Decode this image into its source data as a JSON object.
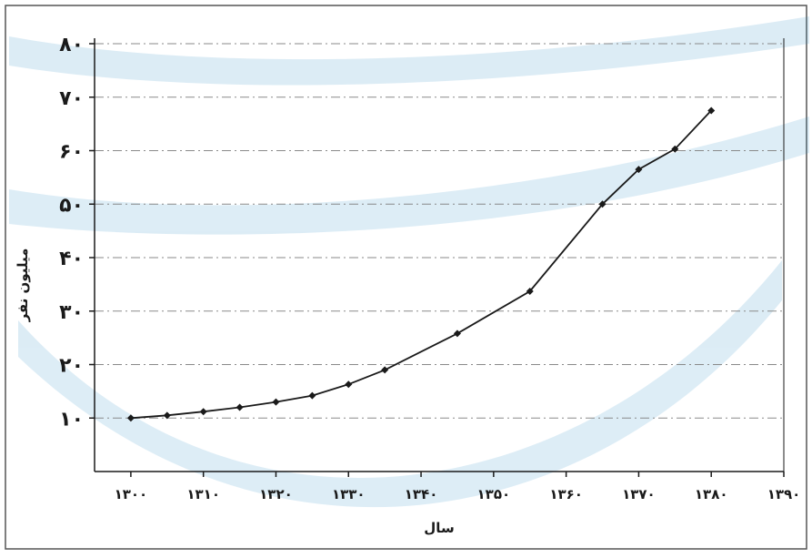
{
  "chart_data": {
    "type": "line",
    "xlabel": "سال",
    "ylabel": "میلیون نفر",
    "xlim": [
      1295,
      1390
    ],
    "ylim": [
      0,
      80
    ],
    "x_ticks": [
      "۱۳۰۰",
      "۱۳۱۰",
      "۱۳۲۰",
      "۱۳۳۰",
      "۱۳۴۰",
      "۱۳۵۰",
      "۱۳۶۰",
      "۱۳۷۰",
      "۱۳۸۰",
      "۱۳۹۰"
    ],
    "x_tick_values": [
      1300,
      1310,
      1320,
      1330,
      1340,
      1350,
      1360,
      1370,
      1380,
      1390
    ],
    "y_ticks": [
      "۱۰",
      "۲۰",
      "۳۰",
      "۴۰",
      "۵۰",
      "۶۰",
      "۷۰",
      "۸۰"
    ],
    "y_tick_values": [
      10,
      20,
      30,
      40,
      50,
      60,
      70,
      80
    ],
    "grid": true,
    "series": [
      {
        "x": [
          1300,
          1305,
          1310,
          1315,
          1320,
          1325,
          1330,
          1335,
          1345,
          1355,
          1365,
          1370,
          1375,
          1380
        ],
        "y": [
          10.0,
          10.5,
          11.2,
          12.0,
          13.0,
          14.2,
          16.3,
          19.0,
          25.8,
          33.7,
          50.0,
          56.5,
          60.3,
          67.5
        ]
      }
    ],
    "colors": {
      "line": "#1a1a1a",
      "grid": "#8a8a8a",
      "axis": "#1a1a1a",
      "frame": "#555555",
      "watermark": "#2b8fc8"
    }
  }
}
